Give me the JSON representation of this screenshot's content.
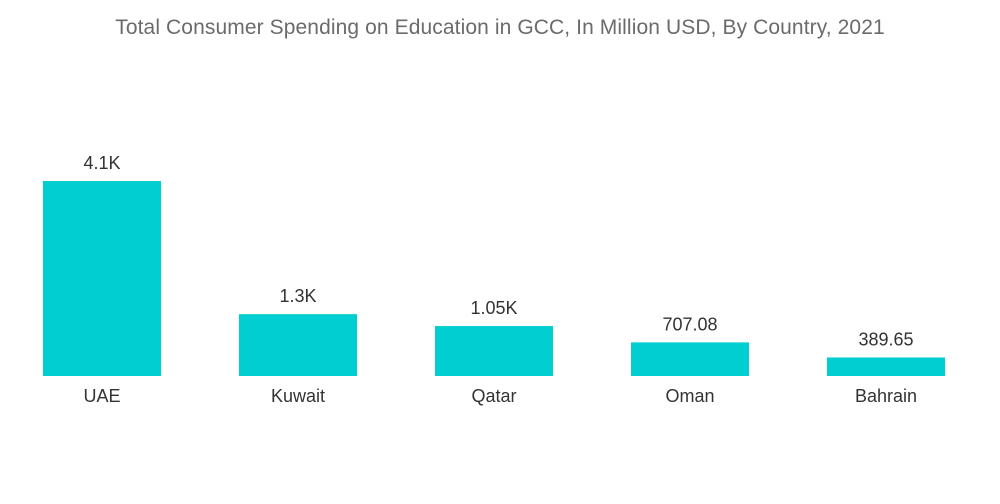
{
  "chart_data": {
    "type": "bar",
    "title": "Total Consumer Spending on Education in GCC, In Million USD, By Country, 2021",
    "xlabel": "",
    "ylabel": "",
    "categories": [
      "UAE",
      "Kuwait",
      "Qatar",
      "Oman",
      "Bahrain"
    ],
    "values": [
      4100,
      1300,
      1050,
      707.08,
      389.65
    ],
    "value_labels": [
      "4.1K",
      "1.3K",
      "1.05K",
      "707.08",
      "389.65"
    ],
    "ylim": [
      0,
      4100
    ],
    "grid": false,
    "legend": "none",
    "bar_color": "#00CED1"
  }
}
